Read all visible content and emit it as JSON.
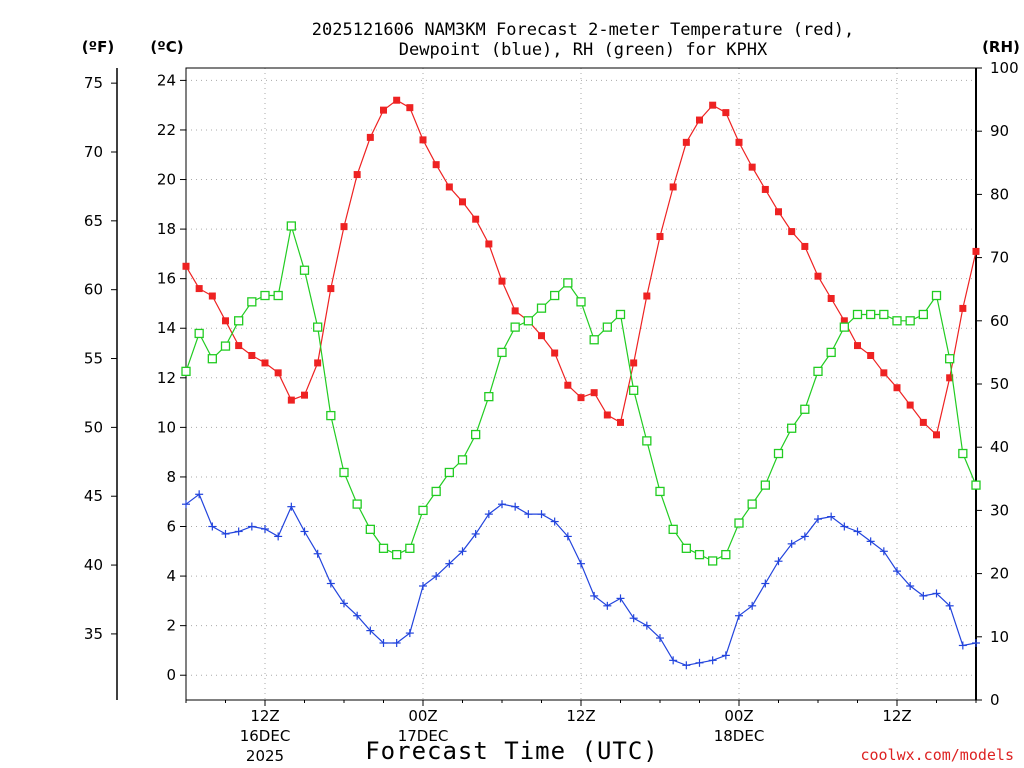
{
  "chart_data": {
    "type": "line",
    "title_line1": "2025121606 NAM3KM Forecast 2-meter Temperature (red),",
    "title_line2": "Dewpoint (blue), RH (green) for KPHX",
    "xlabel": "Forecast Time (UTC)",
    "credit": "coolwx.com/models",
    "unit_f": "(ºF)",
    "unit_c": "(ºC)",
    "unit_rh": "(RH)",
    "x_range_hours": [
      0,
      60
    ],
    "x_ticks": [
      {
        "hour": 6,
        "label1": "12Z",
        "label2": "16DEC",
        "label3": "2025"
      },
      {
        "hour": 18,
        "label1": "00Z",
        "label2": "17DEC",
        "label3": ""
      },
      {
        "hour": 30,
        "label1": "12Z",
        "label2": "",
        "label3": ""
      },
      {
        "hour": 42,
        "label1": "00Z",
        "label2": "18DEC",
        "label3": ""
      },
      {
        "hour": 54,
        "label1": "12Z",
        "label2": "",
        "label3": ""
      }
    ],
    "c_axis": {
      "min": -1,
      "max": 24.5,
      "ticks": [
        0,
        2,
        4,
        6,
        8,
        10,
        12,
        14,
        16,
        18,
        20,
        22,
        24
      ]
    },
    "f_axis_ticks": [
      35,
      40,
      45,
      50,
      55,
      60,
      65,
      70,
      75
    ],
    "rh_axis": {
      "min": 0,
      "max": 100,
      "ticks": [
        0,
        10,
        20,
        30,
        40,
        50,
        60,
        70,
        80,
        90,
        100
      ]
    },
    "series": [
      {
        "name": "Temperature (°C)",
        "color": "#ee2222",
        "marker": "filled-square",
        "axis": "c",
        "hours": [
          0,
          1,
          2,
          3,
          4,
          5,
          6,
          7,
          8,
          9,
          10,
          11,
          12,
          13,
          14,
          15,
          16,
          17,
          18,
          19,
          20,
          21,
          22,
          23,
          24,
          25,
          26,
          27,
          28,
          29,
          30,
          31,
          32,
          33,
          34,
          35,
          36,
          37,
          38,
          39,
          40,
          41,
          42,
          43,
          44,
          45,
          46,
          47,
          48,
          49,
          50,
          51,
          52,
          53,
          54,
          55,
          56,
          57,
          58,
          59,
          60
        ],
        "values": [
          16.5,
          15.6,
          15.3,
          14.3,
          13.3,
          12.9,
          12.6,
          12.2,
          11.1,
          11.3,
          12.6,
          15.6,
          18.1,
          20.2,
          21.7,
          22.8,
          23.2,
          22.9,
          21.6,
          20.6,
          19.7,
          19.1,
          18.4,
          17.4,
          15.9,
          14.7,
          14.3,
          13.7,
          13.0,
          11.7,
          11.2,
          11.4,
          10.5,
          10.2,
          12.6,
          15.3,
          17.7,
          19.7,
          21.5,
          22.4,
          23.0,
          22.7,
          21.5,
          20.5,
          19.6,
          18.7,
          17.9,
          17.3,
          16.1,
          15.2,
          14.3,
          13.3,
          12.9,
          12.2,
          11.6,
          10.9,
          10.2,
          9.7,
          12.0,
          14.8,
          17.1
        ]
      },
      {
        "name": "Dewpoint (°C)",
        "color": "#2244dd",
        "marker": "plus",
        "axis": "c",
        "hours": [
          0,
          1,
          2,
          3,
          4,
          5,
          6,
          7,
          8,
          9,
          10,
          11,
          12,
          13,
          14,
          15,
          16,
          17,
          18,
          19,
          20,
          21,
          22,
          23,
          24,
          25,
          26,
          27,
          28,
          29,
          30,
          31,
          32,
          33,
          34,
          35,
          36,
          37,
          38,
          39,
          40,
          41,
          42,
          43,
          44,
          45,
          46,
          47,
          48,
          49,
          50,
          51,
          52,
          53,
          54,
          55,
          56,
          57,
          58,
          59,
          60
        ],
        "values": [
          6.9,
          7.3,
          6.0,
          5.7,
          5.8,
          6.0,
          5.9,
          5.6,
          6.8,
          5.8,
          4.9,
          3.7,
          2.9,
          2.4,
          1.8,
          1.3,
          1.3,
          1.7,
          3.6,
          4.0,
          4.5,
          5.0,
          5.7,
          6.5,
          6.9,
          6.8,
          6.5,
          6.5,
          6.2,
          5.6,
          4.5,
          3.2,
          2.8,
          3.1,
          2.3,
          2.0,
          1.5,
          0.6,
          0.4,
          0.5,
          0.6,
          0.8,
          2.4,
          2.8,
          3.7,
          4.6,
          5.3,
          5.6,
          6.3,
          6.4,
          6.0,
          5.8,
          5.4,
          5.0,
          4.2,
          3.6,
          3.2,
          3.3,
          2.8,
          1.2,
          1.3
        ]
      },
      {
        "name": "RH (%)",
        "color": "#22cc22",
        "marker": "open-square",
        "axis": "rh",
        "hours": [
          0,
          1,
          2,
          3,
          4,
          5,
          6,
          7,
          8,
          9,
          10,
          11,
          12,
          13,
          14,
          15,
          16,
          17,
          18,
          19,
          20,
          21,
          22,
          23,
          24,
          25,
          26,
          27,
          28,
          29,
          30,
          31,
          32,
          33,
          34,
          35,
          36,
          37,
          38,
          39,
          40,
          41,
          42,
          43,
          44,
          45,
          46,
          47,
          48,
          49,
          50,
          51,
          52,
          53,
          54,
          55,
          56,
          57,
          58,
          59,
          60
        ],
        "values": [
          52,
          58,
          54,
          56,
          60,
          63,
          64,
          64,
          75,
          68,
          59,
          45,
          36,
          31,
          27,
          24,
          23,
          24,
          30,
          33,
          36,
          38,
          42,
          48,
          55,
          59,
          60,
          62,
          64,
          66,
          63,
          57,
          59,
          61,
          49,
          41,
          33,
          27,
          24,
          23,
          22,
          23,
          28,
          31,
          34,
          39,
          43,
          46,
          52,
          55,
          59,
          61,
          61,
          61,
          60,
          60,
          61,
          64,
          54,
          39,
          34
        ]
      }
    ]
  }
}
